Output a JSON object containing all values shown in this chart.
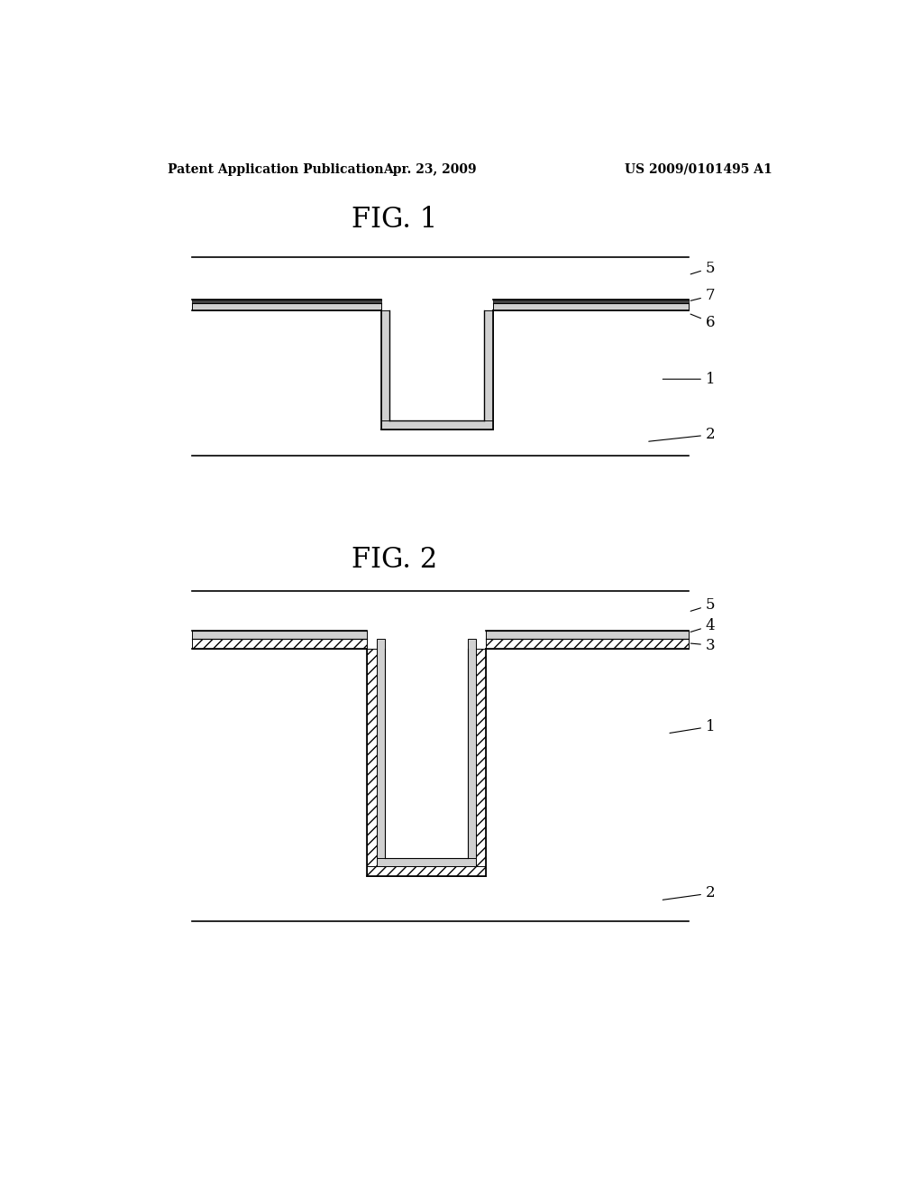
{
  "background_color": "#ffffff",
  "header_left": "Patent Application Publication",
  "header_center": "Apr. 23, 2009",
  "header_right": "US 2009/0101495 A1",
  "fig1_title": "FIG. 1",
  "fig2_title": "FIG. 2"
}
